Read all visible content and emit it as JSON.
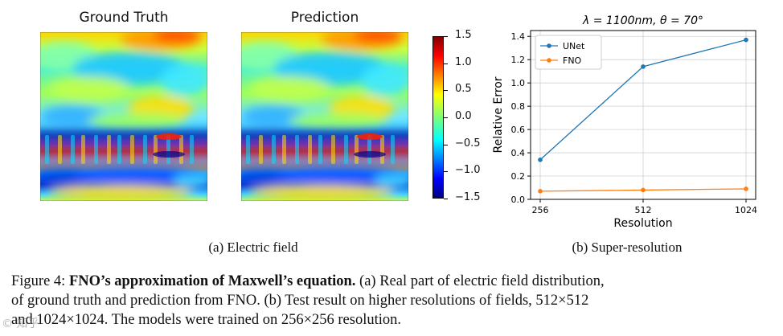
{
  "panel_a": {
    "title_left": "Ground Truth",
    "title_right": "Prediction",
    "colorbar_ticks": [
      "1.5",
      "1.0",
      "0.5",
      "0.0",
      "−0.5",
      "−1.0",
      "−1.5"
    ],
    "subcaption": "(a) Electric field"
  },
  "panel_b": {
    "subcaption": "(b) Super-resolution"
  },
  "chart_data": {
    "type": "line",
    "title": "λ = 1100nm, θ = 70°",
    "xlabel": "Resolution",
    "ylabel": "Relative Error",
    "categories": [
      "256",
      "512",
      "1024"
    ],
    "series": [
      {
        "name": "UNet",
        "color": "#1f77b4",
        "values": [
          0.34,
          1.14,
          1.37
        ]
      },
      {
        "name": "FNO",
        "color": "#ff7f0e",
        "values": [
          0.07,
          0.08,
          0.09
        ]
      }
    ],
    "ylim": [
      0.0,
      1.45
    ],
    "yticks": [
      "0.0",
      "0.2",
      "0.4",
      "0.6",
      "0.8",
      "1.0",
      "1.2",
      "1.4"
    ],
    "grid": true,
    "legend": "top-left"
  },
  "caption": {
    "label": "Figure 4:",
    "bold": "FNO’s approximation of Maxwell’s equation.",
    "line1": " (a) Real part of electric field distribution,",
    "line2": "of ground truth and prediction from FNO. (b) Test result on higher resolutions of fields, 512×512",
    "line3": "and 1024×1024. The models were trained on 256×256 resolution."
  },
  "watermark": "© 知乎"
}
